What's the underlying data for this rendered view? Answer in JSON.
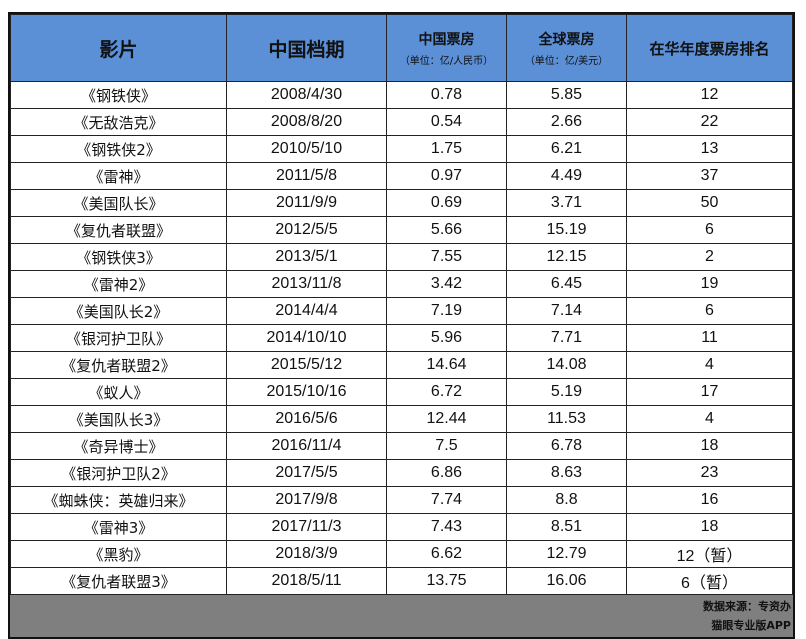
{
  "header": {
    "film": "影片",
    "date": "中国档期",
    "cn_box": "中国票房",
    "cn_box_unit": "（单位：亿/人民币）",
    "global_box": "全球票房",
    "global_box_unit": "（单位：亿/美元）",
    "rank": "在华年度票房排名"
  },
  "rows": [
    {
      "film": "《钢铁侠》",
      "date": "2008/4/30",
      "cn": "0.78",
      "global": "5.85",
      "rank": "12"
    },
    {
      "film": "《无敌浩克》",
      "date": "2008/8/20",
      "cn": "0.54",
      "global": "2.66",
      "rank": "22"
    },
    {
      "film": "《钢铁侠2》",
      "date": "2010/5/10",
      "cn": "1.75",
      "global": "6.21",
      "rank": "13"
    },
    {
      "film": "《雷神》",
      "date": "2011/5/8",
      "cn": "0.97",
      "global": "4.49",
      "rank": "37"
    },
    {
      "film": "《美国队长》",
      "date": "2011/9/9",
      "cn": "0.69",
      "global": "3.71",
      "rank": "50"
    },
    {
      "film": "《复仇者联盟》",
      "date": "2012/5/5",
      "cn": "5.66",
      "global": "15.19",
      "rank": "6"
    },
    {
      "film": "《钢铁侠3》",
      "date": "2013/5/1",
      "cn": "7.55",
      "global": "12.15",
      "rank": "2"
    },
    {
      "film": "《雷神2》",
      "date": "2013/11/8",
      "cn": "3.42",
      "global": "6.45",
      "rank": "19"
    },
    {
      "film": "《美国队长2》",
      "date": "2014/4/4",
      "cn": "7.19",
      "global": "7.14",
      "rank": "6"
    },
    {
      "film": "《银河护卫队》",
      "date": "2014/10/10",
      "cn": "5.96",
      "global": "7.71",
      "rank": "11"
    },
    {
      "film": "《复仇者联盟2》",
      "date": "2015/5/12",
      "cn": "14.64",
      "global": "14.08",
      "rank": "4"
    },
    {
      "film": "《蚁人》",
      "date": "2015/10/16",
      "cn": "6.72",
      "global": "5.19",
      "rank": "17"
    },
    {
      "film": "《美国队长3》",
      "date": "2016/5/6",
      "cn": "12.44",
      "global": "11.53",
      "rank": "4"
    },
    {
      "film": "《奇异博士》",
      "date": "2016/11/4",
      "cn": "7.5",
      "global": "6.78",
      "rank": "18"
    },
    {
      "film": "《银河护卫队2》",
      "date": "2017/5/5",
      "cn": "6.86",
      "global": "8.63",
      "rank": "23"
    },
    {
      "film": "《蜘蛛侠：英雄归来》",
      "date": "2017/9/8",
      "cn": "7.74",
      "global": "8.8",
      "rank": "16"
    },
    {
      "film": "《雷神3》",
      "date": "2017/11/3",
      "cn": "7.43",
      "global": "8.51",
      "rank": "18"
    },
    {
      "film": "《黑豹》",
      "date": "2018/3/9",
      "cn": "6.62",
      "global": "12.79",
      "rank": "12（暂）"
    },
    {
      "film": "《复仇者联盟3》",
      "date": "2018/5/11",
      "cn": "13.75",
      "global": "16.06",
      "rank": "6（暂）"
    }
  ],
  "footer": {
    "source": "数据来源：专资办",
    "app": "猫眼专业版APP"
  }
}
